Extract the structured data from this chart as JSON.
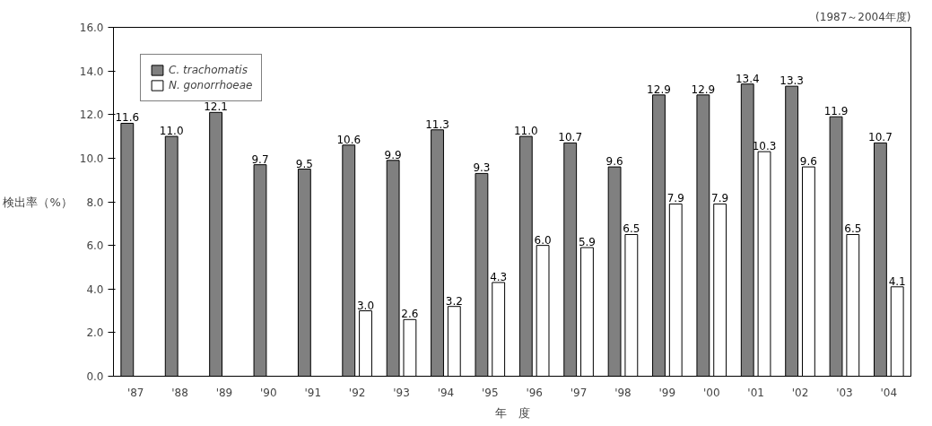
{
  "chart_data": {
    "type": "bar",
    "categories": [
      "'87",
      "'88",
      "'89",
      "'90",
      "'91",
      "'92",
      "'93",
      "'94",
      "'95",
      "'96",
      "'97",
      "'98",
      "'99",
      "'00",
      "'01",
      "'02",
      "'03",
      "'04"
    ],
    "series": [
      {
        "name": "C. trachomatis",
        "color": "#808080",
        "values": [
          11.6,
          11.0,
          12.1,
          9.7,
          9.5,
          10.6,
          9.9,
          11.3,
          9.3,
          11.0,
          10.7,
          9.6,
          12.9,
          12.9,
          13.4,
          13.3,
          11.9,
          10.7
        ],
        "value_labels": [
          "11.6",
          "11.0",
          "12.1",
          "9.7",
          "9.5",
          "10.6",
          "9.9",
          "11.3",
          "9.3",
          "11.0",
          "10.7",
          "9.6",
          "12.9",
          "12.9",
          "13.4",
          "13.3",
          "11.9",
          "10.7"
        ]
      },
      {
        "name": "N. gonorrhoeae",
        "color": "#ffffff",
        "values": [
          null,
          null,
          null,
          null,
          null,
          3.0,
          2.6,
          3.2,
          4.3,
          6.0,
          5.9,
          6.5,
          7.9,
          7.9,
          10.3,
          9.6,
          6.5,
          4.1
        ],
        "value_labels": [
          null,
          null,
          null,
          null,
          null,
          "3.0",
          "2.6",
          "3.2",
          "4.3",
          "6.0",
          "5.9",
          "6.5",
          "7.9",
          "7.9",
          "10.3",
          "9.6",
          "6.5",
          "4.1"
        ]
      }
    ],
    "ylim": [
      0,
      16
    ],
    "yticks": [
      {
        "value": 0,
        "label": "0.0"
      },
      {
        "value": 2,
        "label": "2.0"
      },
      {
        "value": 4,
        "label": "4.0"
      },
      {
        "value": 6,
        "label": "6.0"
      },
      {
        "value": 8,
        "label": "8.0"
      },
      {
        "value": 10,
        "label": "10.0"
      },
      {
        "value": 12,
        "label": "12.0"
      },
      {
        "value": 14,
        "label": "14.0"
      },
      {
        "value": 16,
        "label": "16.0"
      }
    ],
    "xlabel": "年　度",
    "ylabel": "検出率（%）",
    "annotations": [
      "(1987～2004年度)"
    ],
    "legend": "top left",
    "grid": false
  }
}
